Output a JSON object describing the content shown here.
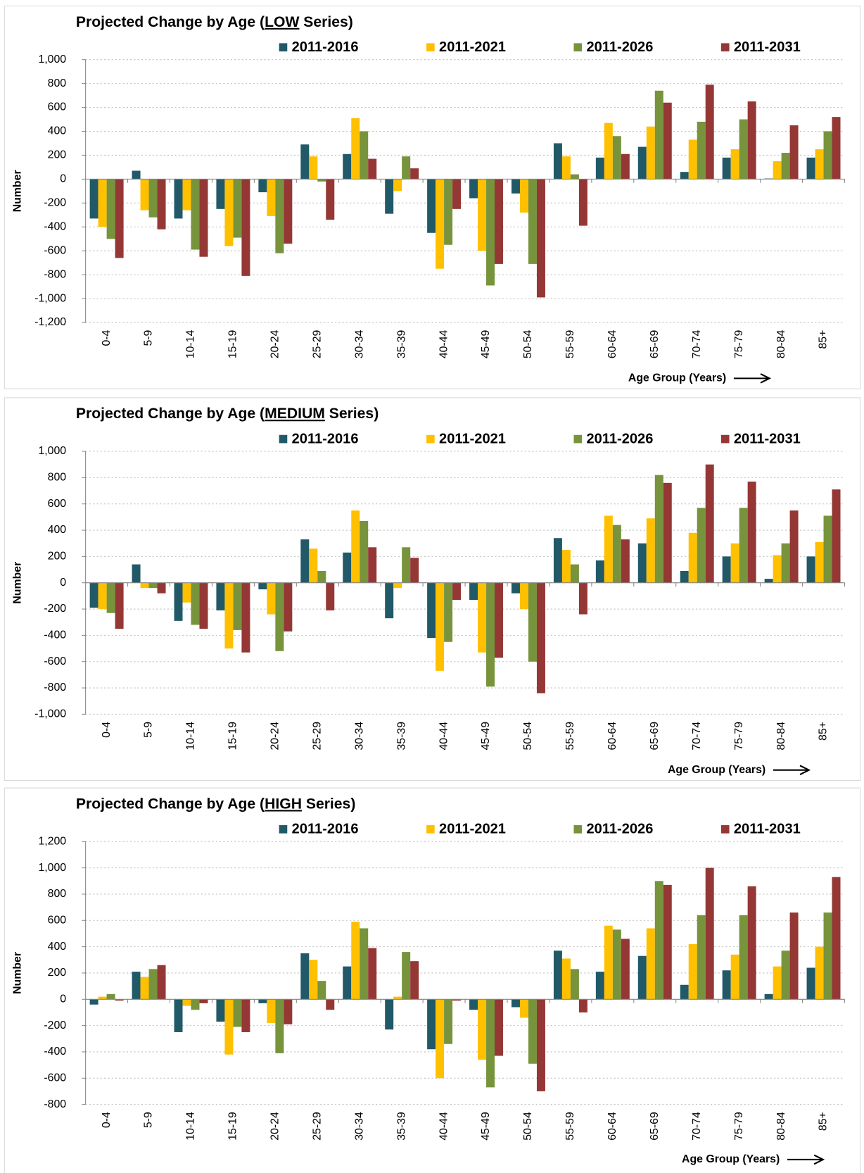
{
  "chart_data": [
    {
      "type": "bar",
      "title": "Projected Change by Age (LOW Series)",
      "y_label": "Number",
      "x_label": "Age Group (Years)",
      "categories": [
        "0-4",
        "5-9",
        "10-14",
        "15-19",
        "20-24",
        "25-29",
        "30-34",
        "35-39",
        "40-44",
        "45-49",
        "50-54",
        "55-59",
        "60-64",
        "65-69",
        "70-74",
        "75-79",
        "80-84",
        "85+"
      ],
      "series": [
        {
          "name": "2011-2016",
          "color": "#215968",
          "values": [
            -330,
            70,
            -330,
            -250,
            -110,
            290,
            210,
            -290,
            -450,
            -160,
            -120,
            300,
            180,
            270,
            60,
            180,
            5,
            180
          ]
        },
        {
          "name": "2011-2021",
          "color": "#ffc000",
          "values": [
            -400,
            -260,
            -260,
            -560,
            -310,
            190,
            510,
            -100,
            -750,
            -600,
            -280,
            190,
            470,
            440,
            330,
            250,
            150,
            250
          ]
        },
        {
          "name": "2011-2026",
          "color": "#77933c",
          "values": [
            -500,
            -320,
            -590,
            -490,
            -620,
            -20,
            400,
            190,
            -550,
            -890,
            -710,
            40,
            360,
            740,
            480,
            500,
            220,
            400
          ]
        },
        {
          "name": "2011-2031",
          "color": "#953735",
          "values": [
            -660,
            -420,
            -650,
            -810,
            -540,
            -340,
            170,
            90,
            -250,
            -710,
            -990,
            -390,
            210,
            640,
            790,
            650,
            450,
            520
          ]
        }
      ],
      "ylim": [
        -1200,
        1000
      ],
      "yticks": [
        {
          "value": -1200,
          "label": "-1,200"
        },
        {
          "value": -1000,
          "label": "-1,000"
        },
        -800,
        -600,
        -400,
        -200,
        0,
        200,
        400,
        600,
        800,
        {
          "value": 1000,
          "label": "1,000"
        }
      ],
      "grid": true
    },
    {
      "type": "bar",
      "title": "Projected Change by Age (MEDIUM Series)",
      "y_label": "Number",
      "x_label": "Age Group (Years)",
      "categories": [
        "0-4",
        "5-9",
        "10-14",
        "15-19",
        "20-24",
        "25-29",
        "30-34",
        "35-39",
        "40-44",
        "45-49",
        "50-54",
        "55-59",
        "60-64",
        "65-69",
        "70-74",
        "75-79",
        "80-84",
        "85+"
      ],
      "series": [
        {
          "name": "2011-2016",
          "color": "#215968",
          "values": [
            -190,
            140,
            -290,
            -210,
            -50,
            330,
            230,
            -270,
            -420,
            -130,
            -80,
            340,
            170,
            300,
            90,
            200,
            30,
            200
          ]
        },
        {
          "name": "2011-2021",
          "color": "#ffc000",
          "values": [
            -200,
            -40,
            -150,
            -500,
            -240,
            260,
            550,
            -40,
            -670,
            -530,
            -200,
            250,
            510,
            490,
            380,
            300,
            210,
            310
          ]
        },
        {
          "name": "2011-2026",
          "color": "#77933c",
          "values": [
            -230,
            -40,
            -320,
            -360,
            -520,
            90,
            470,
            270,
            -450,
            -790,
            -600,
            140,
            440,
            820,
            570,
            570,
            300,
            510
          ]
        },
        {
          "name": "2011-2031",
          "color": "#953735",
          "values": [
            -350,
            -80,
            -350,
            -530,
            -370,
            -210,
            270,
            190,
            -130,
            -570,
            -840,
            -240,
            330,
            760,
            900,
            770,
            550,
            710
          ]
        }
      ],
      "ylim": [
        -1000,
        1000
      ],
      "yticks": [
        {
          "value": -1000,
          "label": "-1,000"
        },
        -800,
        -600,
        -400,
        -200,
        0,
        200,
        400,
        600,
        800,
        {
          "value": 1000,
          "label": "1,000"
        }
      ],
      "grid": true
    },
    {
      "type": "bar",
      "title": "Projected Change by Age (HIGH Series)",
      "y_label": "Number",
      "x_label": "Age Group (Years)",
      "categories": [
        "0-4",
        "5-9",
        "10-14",
        "15-19",
        "20-24",
        "25-29",
        "30-34",
        "35-39",
        "40-44",
        "45-49",
        "50-54",
        "55-59",
        "60-64",
        "65-69",
        "70-74",
        "75-79",
        "80-84",
        "85+"
      ],
      "series": [
        {
          "name": "2011-2016",
          "color": "#215968",
          "values": [
            -40,
            210,
            -250,
            -170,
            -30,
            350,
            250,
            -230,
            -380,
            -80,
            -60,
            370,
            210,
            330,
            110,
            220,
            40,
            240
          ]
        },
        {
          "name": "2011-2021",
          "color": "#ffc000",
          "values": [
            20,
            170,
            -50,
            -420,
            -180,
            300,
            590,
            20,
            -600,
            -460,
            -140,
            310,
            560,
            540,
            420,
            340,
            250,
            400
          ]
        },
        {
          "name": "2011-2026",
          "color": "#77933c",
          "values": [
            40,
            230,
            -80,
            -210,
            -410,
            140,
            540,
            360,
            -340,
            -670,
            -490,
            230,
            530,
            900,
            640,
            640,
            370,
            660
          ]
        },
        {
          "name": "2011-2031",
          "color": "#953735",
          "values": [
            -10,
            260,
            -30,
            -250,
            -190,
            -80,
            390,
            290,
            -10,
            -430,
            -700,
            -100,
            460,
            870,
            1000,
            860,
            660,
            930
          ]
        }
      ],
      "ylim": [
        -800,
        1200
      ],
      "yticks": [
        -800,
        -600,
        -400,
        -200,
        0,
        200,
        400,
        600,
        800,
        {
          "value": 1000,
          "label": "1,000"
        },
        {
          "value": 1200,
          "label": "1,200"
        }
      ],
      "grid": true
    }
  ]
}
